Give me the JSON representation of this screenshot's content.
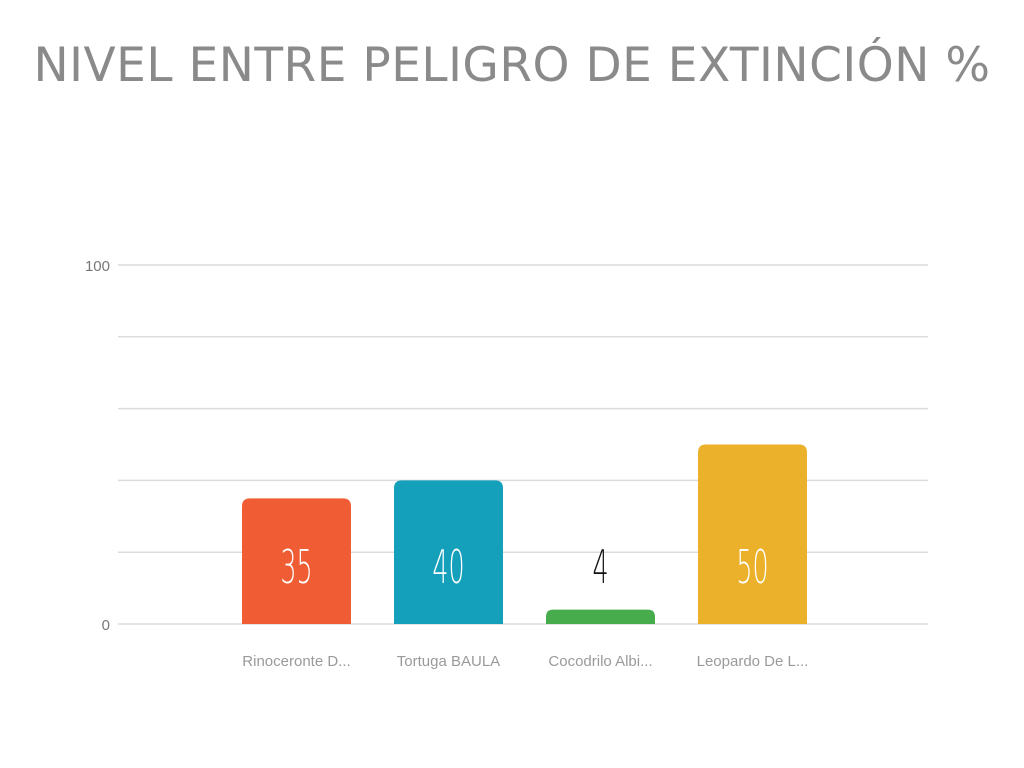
{
  "chart_data": {
    "type": "bar",
    "title": "NIVEL ENTRE PELIGRO DE EXTINCIÓN %",
    "categories": [
      "Rinoceronte D...",
      "Tortuga BAULA",
      "Cocodrilo Albi...",
      "Leopardo De L..."
    ],
    "values": [
      35,
      40,
      4,
      50
    ],
    "data_labels": [
      "35",
      "40",
      "4",
      "50"
    ],
    "colors": [
      "#f05d34",
      "#149fbb",
      "#47ac4b",
      "#ecb12a"
    ],
    "ylim": [
      0,
      100
    ],
    "yticks": [
      0,
      100
    ],
    "gridlines": [
      0,
      20,
      40,
      60,
      80,
      100
    ],
    "grid": true,
    "xlabel": "",
    "ylabel": ""
  }
}
